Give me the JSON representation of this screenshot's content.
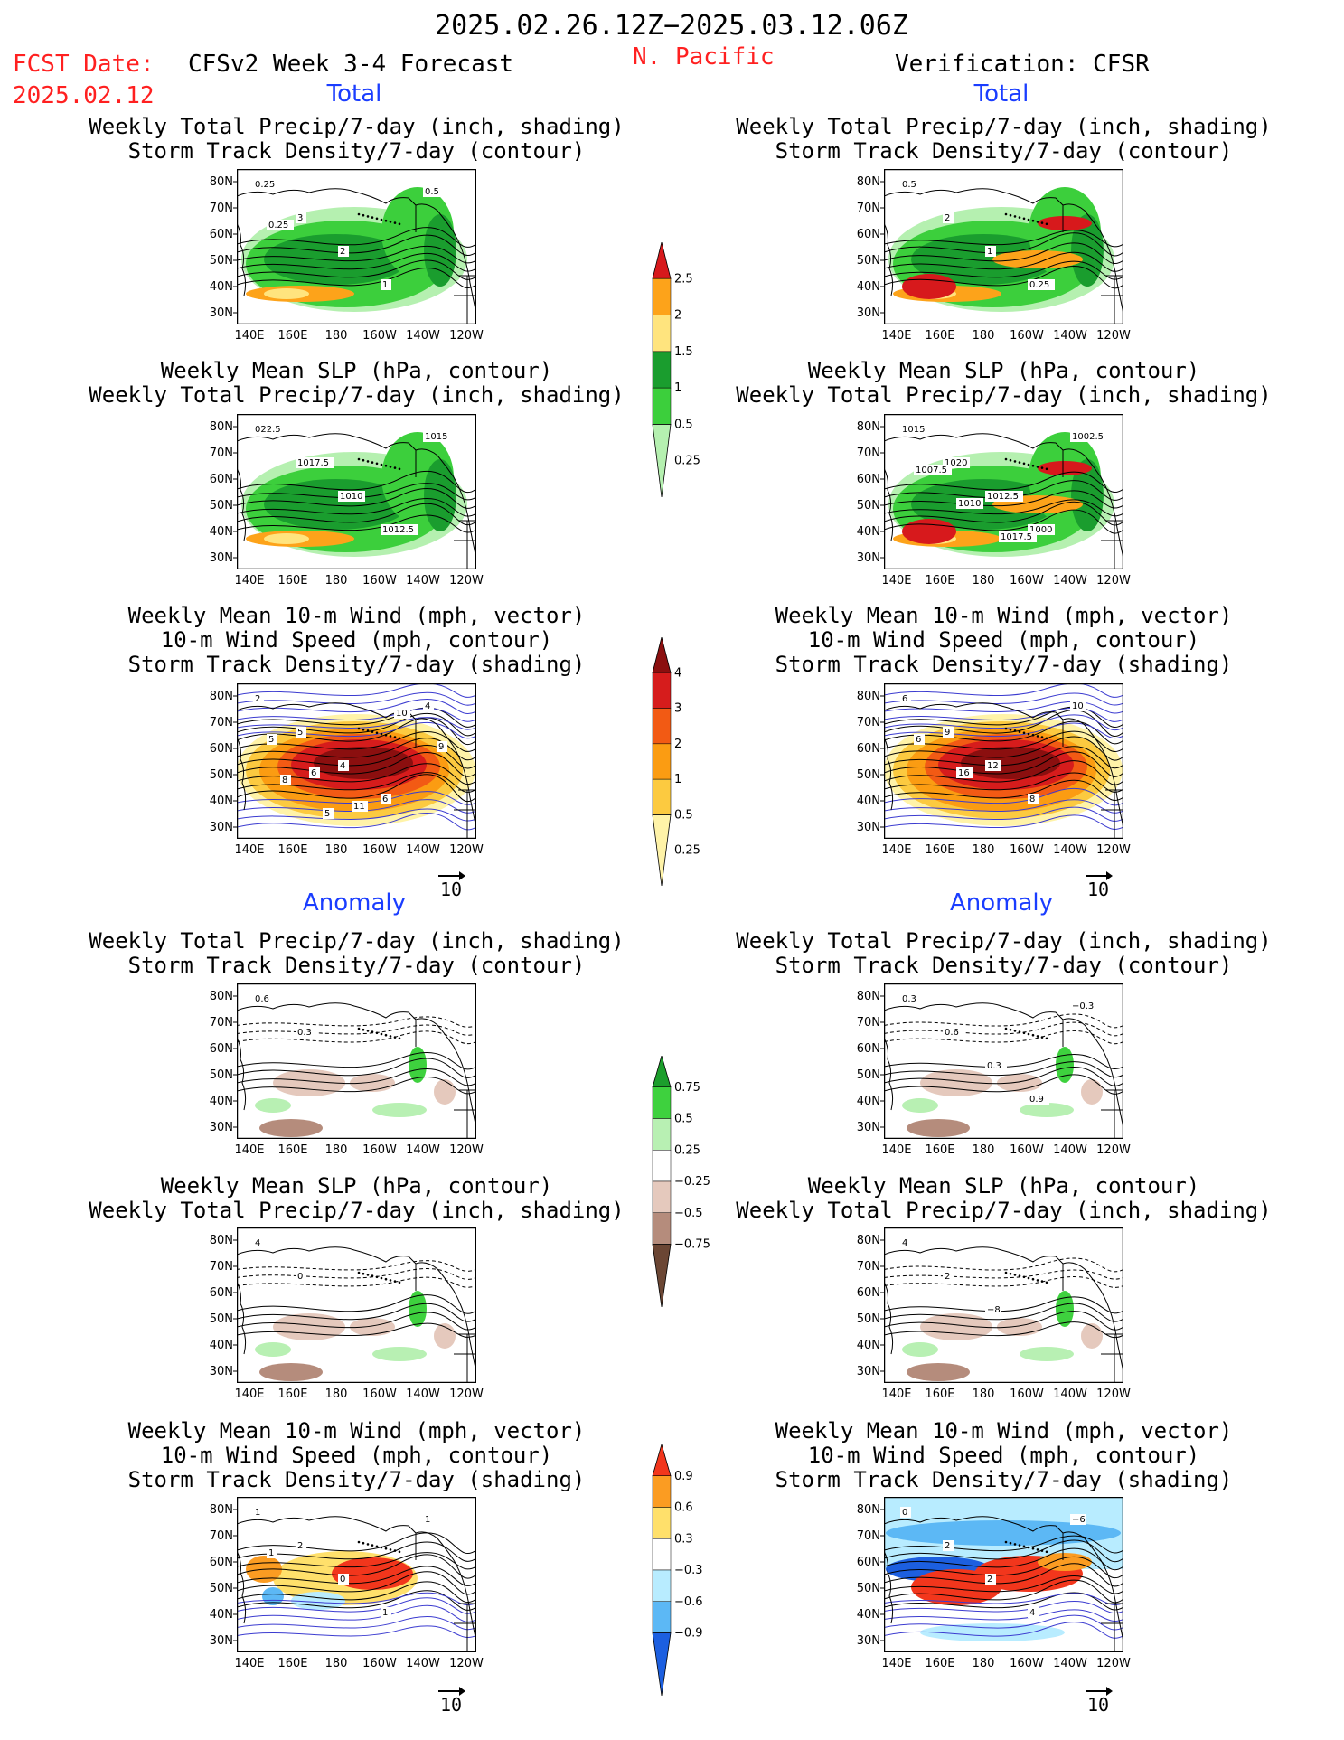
{
  "header": {
    "date_range": "2025.02.26.12Z−2025.03.12.06Z",
    "fcst_label": "FCST Date:",
    "fcst_date": "2025.02.12",
    "model_title": "CFSv2 Week 3-4 Forecast",
    "region": "N. Pacific",
    "verification": "Verification: CFSR"
  },
  "section_labels": {
    "total": "Total",
    "anomaly": "Anomaly"
  },
  "axis": {
    "lat_ticks": [
      "80N",
      "70N",
      "60N",
      "50N",
      "40N",
      "30N"
    ],
    "lon_ticks": [
      "140E",
      "160E",
      "180",
      "160W",
      "140W",
      "120W"
    ]
  },
  "vector_ref": "10",
  "colorbars": [
    {
      "name": "precip-total",
      "labels": [
        "2.5",
        "2",
        "1.5",
        "1",
        "0.5",
        "0.25"
      ],
      "colors": [
        "#d7191c",
        "#fda31a",
        "#ffe47e",
        "#1a9d2e",
        "#3ccf3c",
        "#b5f0b0"
      ]
    },
    {
      "name": "storm-total",
      "labels": [
        "4",
        "3",
        "2",
        "1",
        "0.5",
        "0.25"
      ],
      "colors": [
        "#8b0f0f",
        "#d61c1c",
        "#f25a14",
        "#fb9c12",
        "#fcca40",
        "#fff3a8"
      ]
    },
    {
      "name": "precip-anom",
      "labels": [
        "0.75",
        "0.5",
        "0.25",
        "−0.25",
        "−0.5",
        "−0.75"
      ],
      "colors": [
        "#1c9e2c",
        "#3ed13e",
        "#b8f0b3",
        "#ffffff",
        "#e5c9bd",
        "#b58c7c",
        "#6b4634"
      ]
    },
    {
      "name": "storm-anom",
      "labels": [
        "0.9",
        "0.6",
        "0.3",
        "−0.3",
        "−0.6",
        "−0.9"
      ],
      "colors": [
        "#f2361c",
        "#fb9c22",
        "#ffe06b",
        "#ffffff",
        "#b8ecff",
        "#5cb8f5",
        "#1c5fe0"
      ]
    }
  ],
  "panels": [
    {
      "id": "fcst-total-1",
      "titles": [
        "Weekly Total Precip/7-day (inch, shading)",
        "Storm Track Density/7-day (contour)"
      ],
      "type": "precip",
      "contour_labels": [
        "0.25",
        "3",
        "2",
        "1",
        "0.5",
        "0.25"
      ]
    },
    {
      "id": "ver-total-1",
      "titles": [
        "Weekly Total Precip/7-day (inch, shading)",
        "Storm Track Density/7-day (contour)"
      ],
      "type": "precip",
      "contour_labels": [
        "0.5",
        "2",
        "1",
        "0.25"
      ]
    },
    {
      "id": "fcst-total-2",
      "titles": [
        "Weekly Mean SLP (hPa, contour)",
        "Weekly Total Precip/7-day (inch, shading)"
      ],
      "type": "precip",
      "contour_labels": [
        "022.5",
        "1017.5",
        "1010",
        "1012.5",
        "1015"
      ]
    },
    {
      "id": "ver-total-2",
      "titles": [
        "Weekly Mean SLP (hPa, contour)",
        "Weekly Total Precip/7-day (inch, shading)"
      ],
      "type": "precip",
      "contour_labels": [
        "1015",
        "1020",
        "1012.5",
        "1000",
        "1002.5",
        "1007.5",
        "1010",
        "1017.5"
      ]
    },
    {
      "id": "fcst-total-3",
      "titles": [
        "Weekly Mean 10-m Wind (mph, vector)",
        "10-m Wind Speed (mph, contour)",
        "Storm Track Density/7-day (shading)"
      ],
      "type": "storm",
      "contour_labels": [
        "2",
        "5",
        "4",
        "6",
        "4",
        "5",
        "6",
        "11",
        "10",
        "9",
        "8",
        "5"
      ]
    },
    {
      "id": "ver-total-3",
      "titles": [
        "Weekly Mean 10-m Wind (mph, vector)",
        "10-m Wind Speed (mph, contour)",
        "Storm Track Density/7-day (shading)"
      ],
      "type": "storm",
      "contour_labels": [
        "6",
        "9",
        "12",
        "8",
        "10",
        "6",
        "16"
      ]
    },
    {
      "id": "fcst-anom-1",
      "titles": [
        "Weekly Total Precip/7-day (inch, shading)",
        "Storm Track Density/7-day (contour)"
      ],
      "type": "panom",
      "contour_labels": [
        "0.6",
        "0.3"
      ]
    },
    {
      "id": "ver-anom-1",
      "titles": [
        "Weekly Total Precip/7-day (inch, shading)",
        "Storm Track Density/7-day (contour)"
      ],
      "type": "panom",
      "contour_labels": [
        "0.3",
        "0.6",
        "0.3",
        "0.9",
        "−0.3"
      ]
    },
    {
      "id": "fcst-anom-2",
      "titles": [
        "Weekly Mean SLP (hPa, contour)",
        "Weekly Total Precip/7-day (inch, shading)"
      ],
      "type": "panom",
      "contour_labels": [
        "4",
        "0"
      ]
    },
    {
      "id": "ver-anom-2",
      "titles": [
        "Weekly Mean SLP (hPa, contour)",
        "Weekly Total Precip/7-day (inch, shading)"
      ],
      "type": "panom",
      "contour_labels": [
        "4",
        "2",
        "−8"
      ]
    },
    {
      "id": "fcst-anom-3",
      "titles": [
        "Weekly Mean 10-m Wind (mph, vector)",
        "10-m Wind Speed (mph, contour)",
        "Storm Track Density/7-day (shading)"
      ],
      "type": "sanom",
      "contour_labels": [
        "1",
        "2",
        "0",
        "1",
        "1",
        "1"
      ]
    },
    {
      "id": "ver-anom-3",
      "titles": [
        "Weekly Mean 10-m Wind (mph, vector)",
        "10-m Wind Speed (mph, contour)",
        "Storm Track Density/7-day (shading)"
      ],
      "type": "sanom",
      "contour_labels": [
        "0",
        "2",
        "2",
        "4",
        "−6"
      ]
    }
  ]
}
